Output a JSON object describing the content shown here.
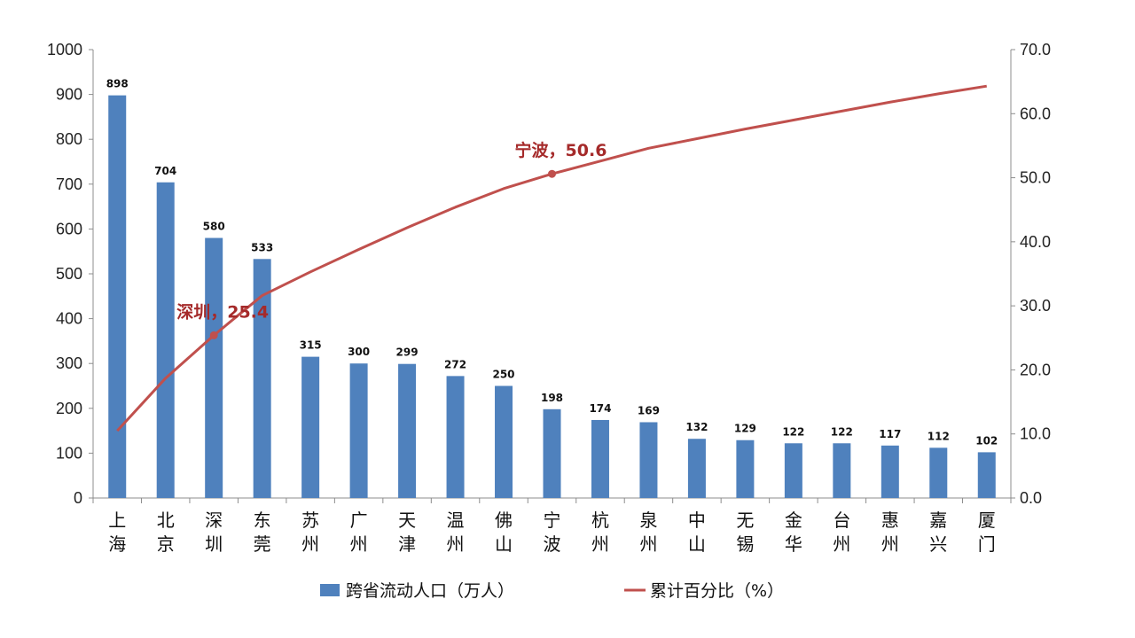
{
  "chart_data": {
    "type": "bar",
    "categories": [
      "上海",
      "北京",
      "深圳",
      "东莞",
      "苏州",
      "广州",
      "天津",
      "温州",
      "佛山",
      "宁波",
      "杭州",
      "泉州",
      "中山",
      "无锡",
      "金华",
      "台州",
      "惠州",
      "嘉兴",
      "厦门"
    ],
    "series": [
      {
        "name": "跨省流动人口（万人）",
        "type": "bar",
        "axis": "left",
        "color": "#4f81bd",
        "values": [
          898,
          704,
          580,
          533,
          315,
          300,
          299,
          272,
          250,
          198,
          174,
          169,
          132,
          129,
          122,
          122,
          117,
          112,
          102
        ]
      },
      {
        "name": "累计百分比（%）",
        "type": "line",
        "axis": "right",
        "color": "#c0504d",
        "values": [
          10.5,
          18.7,
          25.4,
          31.6,
          35.3,
          38.8,
          42.2,
          45.4,
          48.3,
          50.6,
          52.6,
          54.6,
          56.1,
          57.6,
          59.0,
          60.4,
          61.8,
          63.1,
          64.3
        ]
      }
    ],
    "ylim_left": [
      0,
      1000
    ],
    "yticks_left": [
      "0",
      "100",
      "200",
      "300",
      "400",
      "500",
      "600",
      "700",
      "800",
      "900",
      "1000"
    ],
    "ylim_right": [
      0,
      70
    ],
    "yticks_right": [
      "0.0",
      "10.0",
      "20.0",
      "30.0",
      "40.0",
      "50.0",
      "60.0",
      "70.0"
    ],
    "annotations": [
      {
        "category_index": 2,
        "text": "深圳，25.4"
      },
      {
        "category_index": 9,
        "text": "宁波，50.6"
      }
    ],
    "grid": false,
    "legend": "bottom",
    "legend_entries": [
      "跨省流动人口（万人）",
      "累计百分比（%）"
    ]
  }
}
